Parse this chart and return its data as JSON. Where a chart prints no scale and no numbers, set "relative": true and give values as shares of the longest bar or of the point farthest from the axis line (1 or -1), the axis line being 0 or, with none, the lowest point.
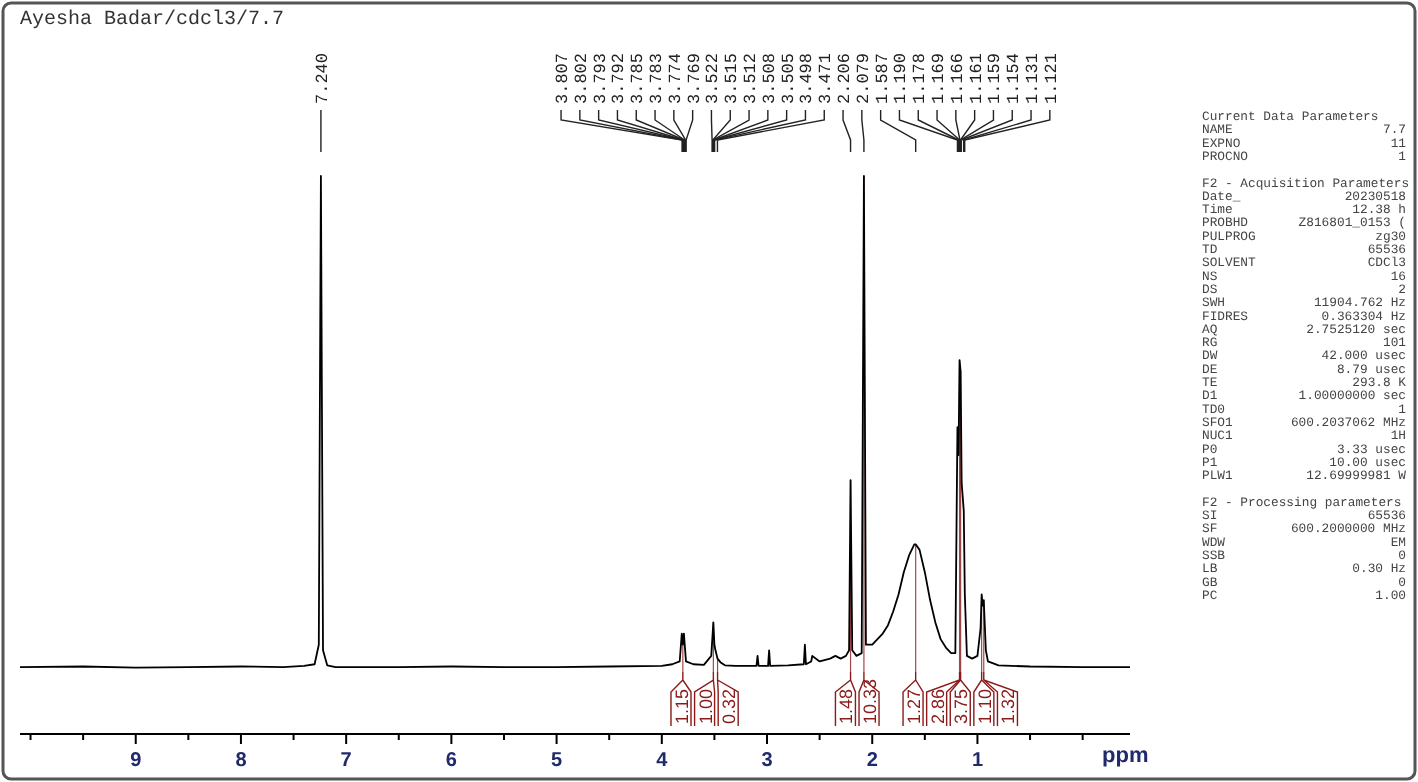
{
  "chart_data": {
    "type": "line",
    "title": "Ayesha Badar/cdcl3/7.7",
    "xlabel": "ppm",
    "relative": true,
    "legend": false,
    "grid": false,
    "marker": "none",
    "line_style": "solid",
    "xlim": [
      10.1,
      -0.45
    ],
    "xticks": [
      {
        "value": 10,
        "label": null
      },
      {
        "value": 9.5,
        "label": null
      },
      9,
      {
        "value": 8.5,
        "label": null
      },
      8,
      {
        "value": 7.5,
        "label": null
      },
      7,
      {
        "value": 6.5,
        "label": null
      },
      6,
      {
        "value": 5.5,
        "label": null
      },
      5,
      {
        "value": 4.5,
        "label": null
      },
      4,
      {
        "value": 3.5,
        "label": null
      },
      3,
      {
        "value": 2.5,
        "label": null
      },
      2,
      {
        "value": 1.5,
        "label": null
      },
      1,
      {
        "value": 0.5,
        "label": null
      },
      {
        "value": 0,
        "label": null
      }
    ],
    "series": [
      {
        "color": "#000000",
        "x": [
          10.1,
          9.5,
          9.0,
          8.5,
          8.0,
          7.6,
          7.4,
          7.3,
          7.26,
          7.24,
          7.22,
          7.18,
          7.1,
          6.5,
          6.0,
          5.5,
          5.0,
          4.5,
          4.0,
          3.9,
          3.83,
          3.81,
          3.8,
          3.79,
          3.77,
          3.7,
          3.6,
          3.53,
          3.51,
          3.5,
          3.49,
          3.47,
          3.44,
          3.4,
          3.3,
          3.1,
          3.09,
          3.08,
          2.99,
          2.98,
          2.97,
          2.8,
          2.65,
          2.64,
          2.63,
          2.58,
          2.57,
          2.5,
          2.4,
          2.35,
          2.3,
          2.25,
          2.22,
          2.206,
          2.19,
          2.15,
          2.1,
          2.079,
          2.06,
          2.0,
          1.95,
          1.9,
          1.85,
          1.8,
          1.75,
          1.7,
          1.65,
          1.6,
          1.587,
          1.55,
          1.5,
          1.45,
          1.4,
          1.35,
          1.3,
          1.25,
          1.21,
          1.19,
          1.18,
          1.17,
          1.16,
          1.15,
          1.13,
          1.12,
          1.1,
          1.05,
          1.0,
          0.97,
          0.96,
          0.95,
          0.94,
          0.92,
          0.9,
          0.8,
          0.5,
          0.0,
          -0.45
        ],
        "values": [
          0.12,
          0.121,
          0.119,
          0.12,
          0.121,
          0.12,
          0.122,
          0.125,
          0.16,
          1.0,
          0.15,
          0.123,
          0.12,
          0.12,
          0.121,
          0.12,
          0.12,
          0.121,
          0.122,
          0.125,
          0.13,
          0.18,
          0.16,
          0.18,
          0.13,
          0.125,
          0.124,
          0.14,
          0.2,
          0.16,
          0.15,
          0.135,
          0.128,
          0.123,
          0.122,
          0.122,
          0.14,
          0.122,
          0.122,
          0.15,
          0.122,
          0.123,
          0.125,
          0.16,
          0.125,
          0.13,
          0.14,
          0.13,
          0.135,
          0.14,
          0.135,
          0.14,
          0.15,
          0.455,
          0.15,
          0.14,
          0.145,
          1.0,
          0.16,
          0.16,
          0.17,
          0.18,
          0.195,
          0.22,
          0.25,
          0.29,
          0.32,
          0.34,
          0.34,
          0.33,
          0.29,
          0.24,
          0.2,
          0.17,
          0.155,
          0.145,
          0.145,
          0.55,
          0.5,
          0.67,
          0.65,
          0.45,
          0.4,
          0.25,
          0.14,
          0.135,
          0.14,
          0.19,
          0.25,
          0.23,
          0.24,
          0.15,
          0.13,
          0.123,
          0.121,
          0.12,
          0.12
        ]
      }
    ],
    "annotations": [
      {
        "text": "7.240",
        "x": 7.24
      },
      {
        "text": "3.807",
        "x": 3.807
      },
      {
        "text": "3.802",
        "x": 3.802
      },
      {
        "text": "3.793",
        "x": 3.793
      },
      {
        "text": "3.792",
        "x": 3.792
      },
      {
        "text": "3.785",
        "x": 3.785
      },
      {
        "text": "3.783",
        "x": 3.783
      },
      {
        "text": "3.774",
        "x": 3.774
      },
      {
        "text": "3.769",
        "x": 3.769
      },
      {
        "text": "3.522",
        "x": 3.522
      },
      {
        "text": "3.515",
        "x": 3.515
      },
      {
        "text": "3.512",
        "x": 3.512
      },
      {
        "text": "3.508",
        "x": 3.508
      },
      {
        "text": "3.505",
        "x": 3.505
      },
      {
        "text": "3.498",
        "x": 3.498
      },
      {
        "text": "3.471",
        "x": 3.471
      },
      {
        "text": "2.206",
        "x": 2.206
      },
      {
        "text": "2.079",
        "x": 2.079
      },
      {
        "text": "1.587",
        "x": 1.587
      },
      {
        "text": "1.190",
        "x": 1.19
      },
      {
        "text": "1.178",
        "x": 1.178
      },
      {
        "text": "1.169",
        "x": 1.169
      },
      {
        "text": "1.166",
        "x": 1.166
      },
      {
        "text": "1.161",
        "x": 1.161
      },
      {
        "text": "1.159",
        "x": 1.159
      },
      {
        "text": "1.154",
        "x": 1.154
      },
      {
        "text": "1.131",
        "x": 1.131
      },
      {
        "text": "1.121",
        "x": 1.121
      },
      {
        "text": "1.15",
        "x": 3.8,
        "y": 0.16
      },
      {
        "text": "1.00",
        "x": 3.51,
        "y": 0.2
      },
      {
        "text": "0.32",
        "x": 3.47,
        "y": 0.135
      },
      {
        "text": "1.48",
        "x": 2.206,
        "y": 0.455
      },
      {
        "text": "10.33",
        "x": 2.079,
        "y": 1.0
      },
      {
        "text": "1.27",
        "x": 1.587,
        "y": 0.34
      },
      {
        "text": "2.86",
        "x": 1.17,
        "y": 0.67
      },
      {
        "text": "3.75",
        "x": 1.16,
        "y": 0.65
      },
      {
        "text": "1.10",
        "x": 0.96,
        "y": 0.25
      },
      {
        "text": "1.32",
        "x": 0.94,
        "y": 0.24
      },
      "Current Data Parameters",
      "NAME\t7.7",
      "EXPNO\t11",
      "PROCNO\t1",
      "F2 - Acquisition Parameters",
      "Date_\t20230518",
      "Time\t12.38 h",
      "PROBHD\tZ816801_0153 (",
      "PULPROG\tzg30",
      "TD\t65536",
      "SOLVENT\tCDCl3",
      "NS\t16",
      "DS\t2",
      "SWH\t11904.762 Hz",
      "FIDRES\t0.363304 Hz",
      "AQ\t2.7525120 sec",
      "RG\t101",
      "DW\t42.000 usec",
      "DE\t8.79 usec",
      "TE\t293.8 K",
      "D1\t1.00000000 sec",
      "TD0\t1",
      "SFO1\t600.2037062 MHz",
      "NUC1\t1H",
      "P0\t3.33 usec",
      "P1\t10.00 usec",
      "PLW1\t12.69999981 W",
      "F2 - Processing parameters",
      "SI\t65536",
      "SF\t600.2000000 MHz",
      "WDW\tEM",
      "SSB\t0",
      "LB\t0.30 Hz",
      "GB\t0",
      "PC\t1.00"
    ]
  }
}
